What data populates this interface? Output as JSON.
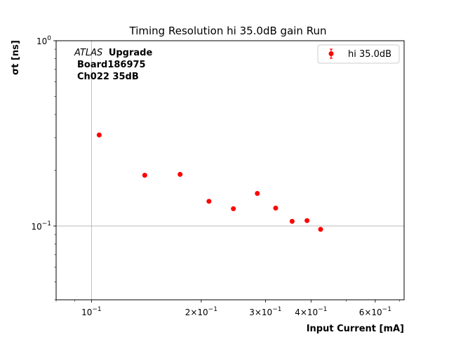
{
  "colors": {
    "marker": "#ff0000",
    "grid": "#b0b0b0",
    "axis": "#000000",
    "background": "#ffffff"
  },
  "chart_data": {
    "type": "scatter",
    "title": "Timing Resolution hi 35.0dB gain Run",
    "xlabel": "Input Current [mA]",
    "ylabel": "σt [ns]",
    "x_scale": "log",
    "y_scale": "log",
    "xlim": [
      0.08,
      0.72
    ],
    "ylim": [
      0.04,
      1.0
    ],
    "grid": true,
    "legend_position": "top-right",
    "x_ticks": [
      {
        "value": 0.1,
        "base": "10",
        "exp": "−1",
        "mantissa": ""
      },
      {
        "value": 0.2,
        "base": "10",
        "exp": "−1",
        "mantissa": "2×"
      },
      {
        "value": 0.3,
        "base": "10",
        "exp": "−1",
        "mantissa": "3×"
      },
      {
        "value": 0.4,
        "base": "10",
        "exp": "−1",
        "mantissa": "4×"
      },
      {
        "value": 0.6,
        "base": "10",
        "exp": "−1",
        "mantissa": "6×"
      }
    ],
    "y_ticks": [
      {
        "value": 0.1,
        "base": "10",
        "exp": "−1"
      },
      {
        "value": 1.0,
        "base": "10",
        "exp": "0"
      }
    ],
    "annotation": {
      "line1_italic": "ATLAS",
      "line1_bold": "Upgrade",
      "line2": "Board186975",
      "line3": "Ch022 35dB"
    },
    "series": [
      {
        "name": "hi 35.0dB",
        "x": [
          0.105,
          0.14,
          0.175,
          0.21,
          0.245,
          0.285,
          0.32,
          0.355,
          0.39,
          0.425
        ],
        "y": [
          0.31,
          0.188,
          0.19,
          0.136,
          0.124,
          0.15,
          0.125,
          0.106,
          0.107,
          0.096
        ]
      }
    ]
  }
}
